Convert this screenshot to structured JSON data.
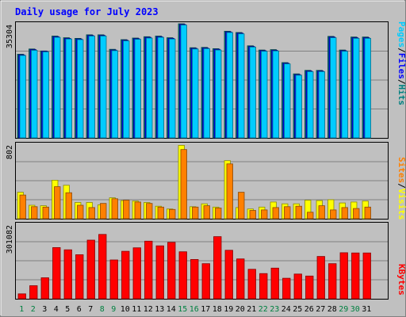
{
  "title": "Daily usage for July 2023",
  "colors": {
    "background": "#c0c0c0",
    "title": "#0000ff",
    "hits": "#008080",
    "files": "#0000ff",
    "pages": "#00ccff",
    "visits": "#ffff00",
    "sites": "#ff8000",
    "kbytes": "#ff0000",
    "weekend_label": "#008040"
  },
  "chart_data": [
    {
      "type": "bar",
      "panel": "hits-files-pages",
      "ylabel_max": "35304",
      "legend": [
        "Pages",
        "/",
        "Files",
        "/",
        "Hits"
      ],
      "ylim": [
        0,
        35304
      ],
      "categories": [
        "1",
        "2",
        "3",
        "4",
        "5",
        "6",
        "7",
        "8",
        "9",
        "10",
        "11",
        "12",
        "13",
        "14",
        "15",
        "16",
        "17",
        "18",
        "19",
        "20",
        "21",
        "22",
        "23",
        "24",
        "25",
        "26",
        "27",
        "28",
        "29",
        "30",
        "31"
      ],
      "weekend_days": [
        "1",
        "2",
        "8",
        "9",
        "15",
        "16",
        "22",
        "23",
        "29",
        "30"
      ],
      "series": [
        {
          "name": "Hits",
          "values": [
            25900,
            27500,
            26900,
            31500,
            31000,
            30800,
            31900,
            31900,
            27400,
            30400,
            30900,
            31300,
            31500,
            31000,
            35304,
            27900,
            28000,
            27600,
            33000,
            32600,
            28500,
            27200,
            27300,
            23300,
            19800,
            20900,
            20900,
            31400,
            27200,
            31200,
            31200
          ]
        },
        {
          "name": "Files",
          "values": [
            25700,
            27300,
            26800,
            31300,
            30800,
            30600,
            31700,
            31700,
            27200,
            30200,
            30700,
            31100,
            31300,
            30800,
            35100,
            27700,
            27800,
            27400,
            32800,
            32400,
            28300,
            27000,
            27100,
            23100,
            19600,
            20700,
            20700,
            31200,
            27000,
            31000,
            31000
          ]
        },
        {
          "name": "Pages",
          "values": [
            25500,
            27100,
            26600,
            31100,
            30600,
            30400,
            31500,
            31500,
            27000,
            30000,
            30500,
            30900,
            31100,
            30600,
            34900,
            27500,
            27600,
            27200,
            32600,
            32200,
            28100,
            26800,
            26900,
            22900,
            19400,
            20500,
            20500,
            31000,
            26800,
            30800,
            30800
          ]
        }
      ]
    },
    {
      "type": "bar",
      "panel": "visits-sites",
      "ylabel_max": "802",
      "legend": [
        "Sites",
        "/",
        "Visits"
      ],
      "ylim": [
        0,
        802
      ],
      "categories": [
        "1",
        "2",
        "3",
        "4",
        "5",
        "6",
        "7",
        "8",
        "9",
        "10",
        "11",
        "12",
        "13",
        "14",
        "15",
        "16",
        "17",
        "18",
        "19",
        "20",
        "21",
        "22",
        "23",
        "24",
        "25",
        "26",
        "27",
        "28",
        "29",
        "30",
        "31"
      ],
      "series": [
        {
          "name": "Visits",
          "values": [
            285,
            145,
            140,
            415,
            360,
            175,
            175,
            150,
            225,
            195,
            190,
            175,
            135,
            105,
            790,
            130,
            160,
            125,
            625,
            120,
            105,
            125,
            180,
            160,
            160,
            200,
            195,
            205,
            170,
            180,
            190
          ]
        },
        {
          "name": "Sites",
          "values": [
            255,
            130,
            125,
            345,
            280,
            145,
            120,
            165,
            215,
            200,
            180,
            165,
            125,
            100,
            745,
            125,
            140,
            115,
            590,
            285,
            90,
            95,
            120,
            130,
            135,
            70,
            140,
            95,
            120,
            110,
            125
          ]
        }
      ]
    },
    {
      "type": "bar",
      "panel": "kbytes",
      "ylabel_max": "301082",
      "legend": [
        "KBytes"
      ],
      "ylim": [
        0,
        301082
      ],
      "categories": [
        "1",
        "2",
        "3",
        "4",
        "5",
        "6",
        "7",
        "8",
        "9",
        "10",
        "11",
        "12",
        "13",
        "14",
        "15",
        "16",
        "17",
        "18",
        "19",
        "20",
        "21",
        "22",
        "23",
        "24",
        "25",
        "26",
        "27",
        "28",
        "29",
        "30",
        "31"
      ],
      "series": [
        {
          "name": "KBytes",
          "values": [
            20000,
            53000,
            85000,
            207000,
            198000,
            178000,
            237000,
            260000,
            157000,
            192000,
            206000,
            233000,
            214000,
            228000,
            190000,
            159000,
            142000,
            251000,
            196000,
            161000,
            119000,
            102000,
            124000,
            83000,
            100000,
            92000,
            171000,
            142000,
            186000,
            185000,
            185000
          ]
        }
      ]
    }
  ]
}
